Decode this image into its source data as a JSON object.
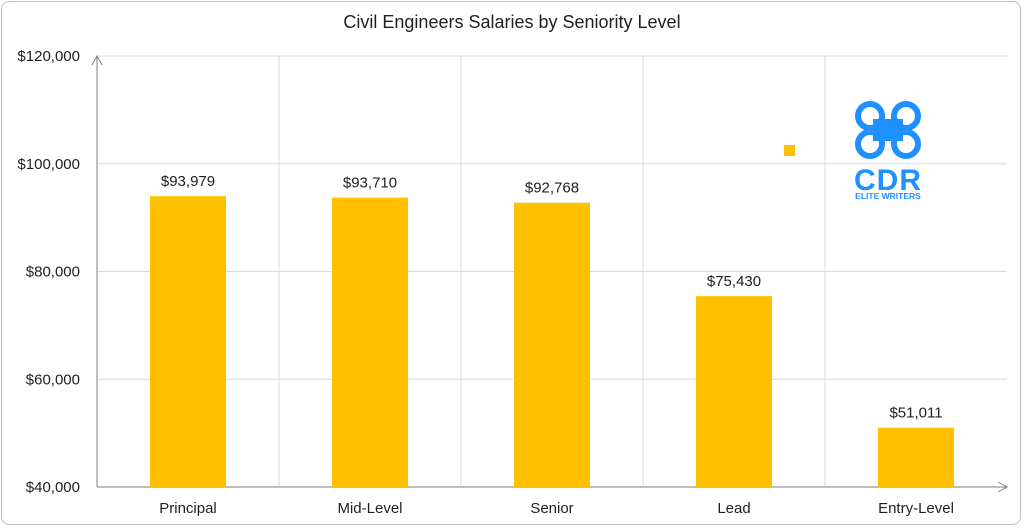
{
  "chart_data": {
    "type": "bar",
    "title": "Civil Engineers Salaries by Seniority Level",
    "categories": [
      "Principal",
      "Mid-Level",
      "Senior",
      "Lead",
      "Entry-Level"
    ],
    "values": [
      93979,
      93710,
      92768,
      75430,
      51011
    ],
    "value_labels": [
      "$93,979",
      "$93,710",
      "$92,768",
      "$75,430",
      "$51,011"
    ],
    "ylim": [
      40000,
      120000
    ],
    "yticks": [
      40000,
      60000,
      80000,
      100000,
      120000
    ],
    "ytick_labels": [
      "$40,000",
      "$60,000",
      "$80,000",
      "$100,000",
      "$120,000"
    ],
    "grid": true,
    "bar_color": "#FFC000"
  },
  "logo": {
    "text": "CDR",
    "subtext": "ELITE WRITERS",
    "color": "#1E90FF"
  }
}
